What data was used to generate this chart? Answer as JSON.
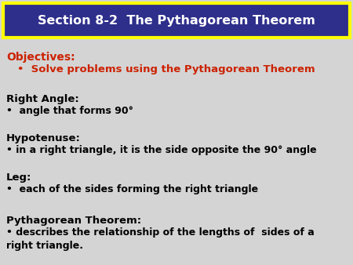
{
  "title": "Section 8-2  The Pythagorean Theorem",
  "title_bg": "#2e2e8b",
  "title_border": "#ffff00",
  "title_text_color": "#ffffff",
  "bg_color": "#d4d4d4",
  "objectives_label": "Objectives:",
  "objectives_color": "#cc2200",
  "bullet1": "•  Solve problems using the Pythagorean Theorem",
  "bullet1_color": "#cc2200",
  "sections": [
    {
      "header": "Right Angle:",
      "bullet": "•  angle that forms 90°"
    },
    {
      "header": "Hypotenuse:",
      "bullet": "• in a right triangle, it is the side opposite the 90° angle"
    },
    {
      "header": "Leg:",
      "bullet": "•  each of the sides forming the right triangle"
    },
    {
      "header": "Pythagorean Theorem:",
      "bullet": "• describes the relationship of the lengths of  sides of a\nright triangle."
    }
  ]
}
